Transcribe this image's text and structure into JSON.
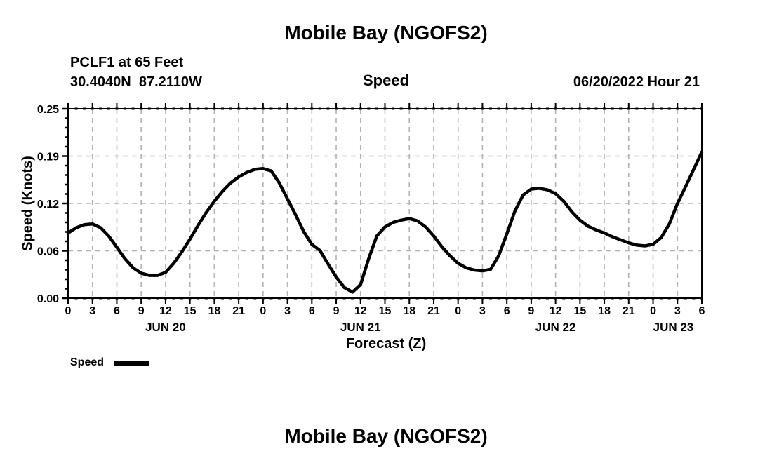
{
  "header": {
    "title": "Mobile Bay (NGOFS2)",
    "station_line1": "PCLF1 at 65 Feet",
    "station_line2": "30.4040N  87.2110W",
    "panel_title": "Speed",
    "run_label": "06/20/2022 Hour 21"
  },
  "legend": {
    "label": "Speed"
  },
  "footer": {
    "next_panel_title": "Mobile Bay (NGOFS2)"
  },
  "chart_data": {
    "type": "line",
    "title": "Mobile Bay (NGOFS2)",
    "subtitle": "Speed",
    "xlabel": "Forecast (Z)",
    "ylabel": "Speed (Knots)",
    "x_hours_range": [
      0,
      78
    ],
    "ylim": [
      0,
      0.25
    ],
    "grid": true,
    "grid_color": "#b3b3b3",
    "line_color": "#000000",
    "y_ticks": [
      {
        "value": 0.0,
        "label": "0.00"
      },
      {
        "value": 0.0625,
        "label": "0.06"
      },
      {
        "value": 0.125,
        "label": "0.12"
      },
      {
        "value": 0.1875,
        "label": "0.19"
      },
      {
        "value": 0.25,
        "label": "0.25"
      }
    ],
    "x_tick_step_hours": 3,
    "x_tick_labels": [
      "0",
      "3",
      "6",
      "9",
      "12",
      "15",
      "18",
      "21",
      "0",
      "3",
      "6",
      "9",
      "12",
      "15",
      "18",
      "21",
      "0",
      "3",
      "6",
      "9",
      "12",
      "15",
      "18",
      "21",
      "0",
      "3",
      "6"
    ],
    "day_labels": [
      {
        "label": "JUN 20",
        "hour": 12
      },
      {
        "label": "JUN 21",
        "hour": 36
      },
      {
        "label": "JUN 22",
        "hour": 60
      },
      {
        "label": "JUN 23",
        "hour": 74.5
      }
    ],
    "series": [
      {
        "name": "Speed",
        "x_start_hour": 0,
        "x_step_hours": 1,
        "values": [
          0.086,
          0.093,
          0.097,
          0.098,
          0.093,
          0.082,
          0.067,
          0.052,
          0.04,
          0.033,
          0.03,
          0.03,
          0.034,
          0.046,
          0.061,
          0.078,
          0.096,
          0.113,
          0.128,
          0.141,
          0.152,
          0.16,
          0.166,
          0.17,
          0.171,
          0.168,
          0.152,
          0.131,
          0.11,
          0.088,
          0.071,
          0.063,
          0.045,
          0.028,
          0.014,
          0.008,
          0.018,
          0.052,
          0.082,
          0.094,
          0.1,
          0.103,
          0.105,
          0.102,
          0.094,
          0.082,
          0.068,
          0.056,
          0.046,
          0.04,
          0.037,
          0.036,
          0.038,
          0.056,
          0.085,
          0.115,
          0.136,
          0.144,
          0.145,
          0.143,
          0.138,
          0.128,
          0.114,
          0.103,
          0.095,
          0.09,
          0.086,
          0.081,
          0.077,
          0.073,
          0.07,
          0.069,
          0.071,
          0.08,
          0.098,
          0.125,
          0.147,
          0.17,
          0.193
        ]
      }
    ]
  }
}
